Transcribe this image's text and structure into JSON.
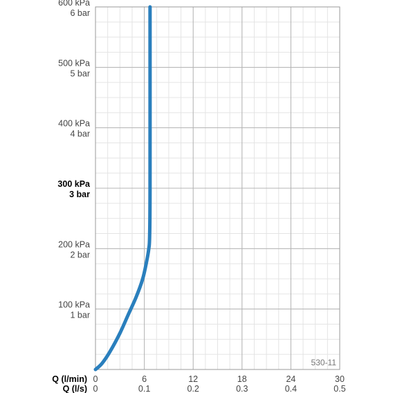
{
  "chart_data": {
    "type": "line",
    "code": "530-11",
    "x_axes": [
      {
        "name": "Q (l/min)",
        "ticks": [
          "0",
          "6",
          "12",
          "18",
          "24",
          "30"
        ]
      },
      {
        "name": "Q (l/s)",
        "ticks": [
          "0",
          "0.1",
          "0.2",
          "0.3",
          "0.4",
          "0.5"
        ]
      }
    ],
    "y_ticks": [
      {
        "value": 100,
        "kpa": "100 kPa",
        "bar": "1 bar",
        "bold": false
      },
      {
        "value": 200,
        "kpa": "200 kPa",
        "bar": "2 bar",
        "bold": false
      },
      {
        "value": 300,
        "kpa": "300 kPa",
        "bar": "3 bar",
        "bold": true
      },
      {
        "value": 400,
        "kpa": "400 kPa",
        "bar": "4 bar",
        "bold": false
      },
      {
        "value": 500,
        "kpa": "500 kPa",
        "bar": "5 bar",
        "bold": false
      },
      {
        "value": 600,
        "kpa": "600 kPa",
        "bar": "6 bar",
        "bold": false
      }
    ],
    "xlim": [
      0,
      30
    ],
    "ylim": [
      0,
      600
    ],
    "grid": true,
    "series": [
      {
        "color": "#2a7fbd",
        "x": [
          0,
          0.8,
          1.8,
          3.0,
          4.0,
          5.0,
          5.8,
          6.3,
          6.55,
          6.65,
          6.7,
          6.7
        ],
        "y": [
          0,
          10,
          30,
          60,
          90,
          120,
          150,
          180,
          200,
          220,
          300,
          600
        ]
      }
    ]
  }
}
